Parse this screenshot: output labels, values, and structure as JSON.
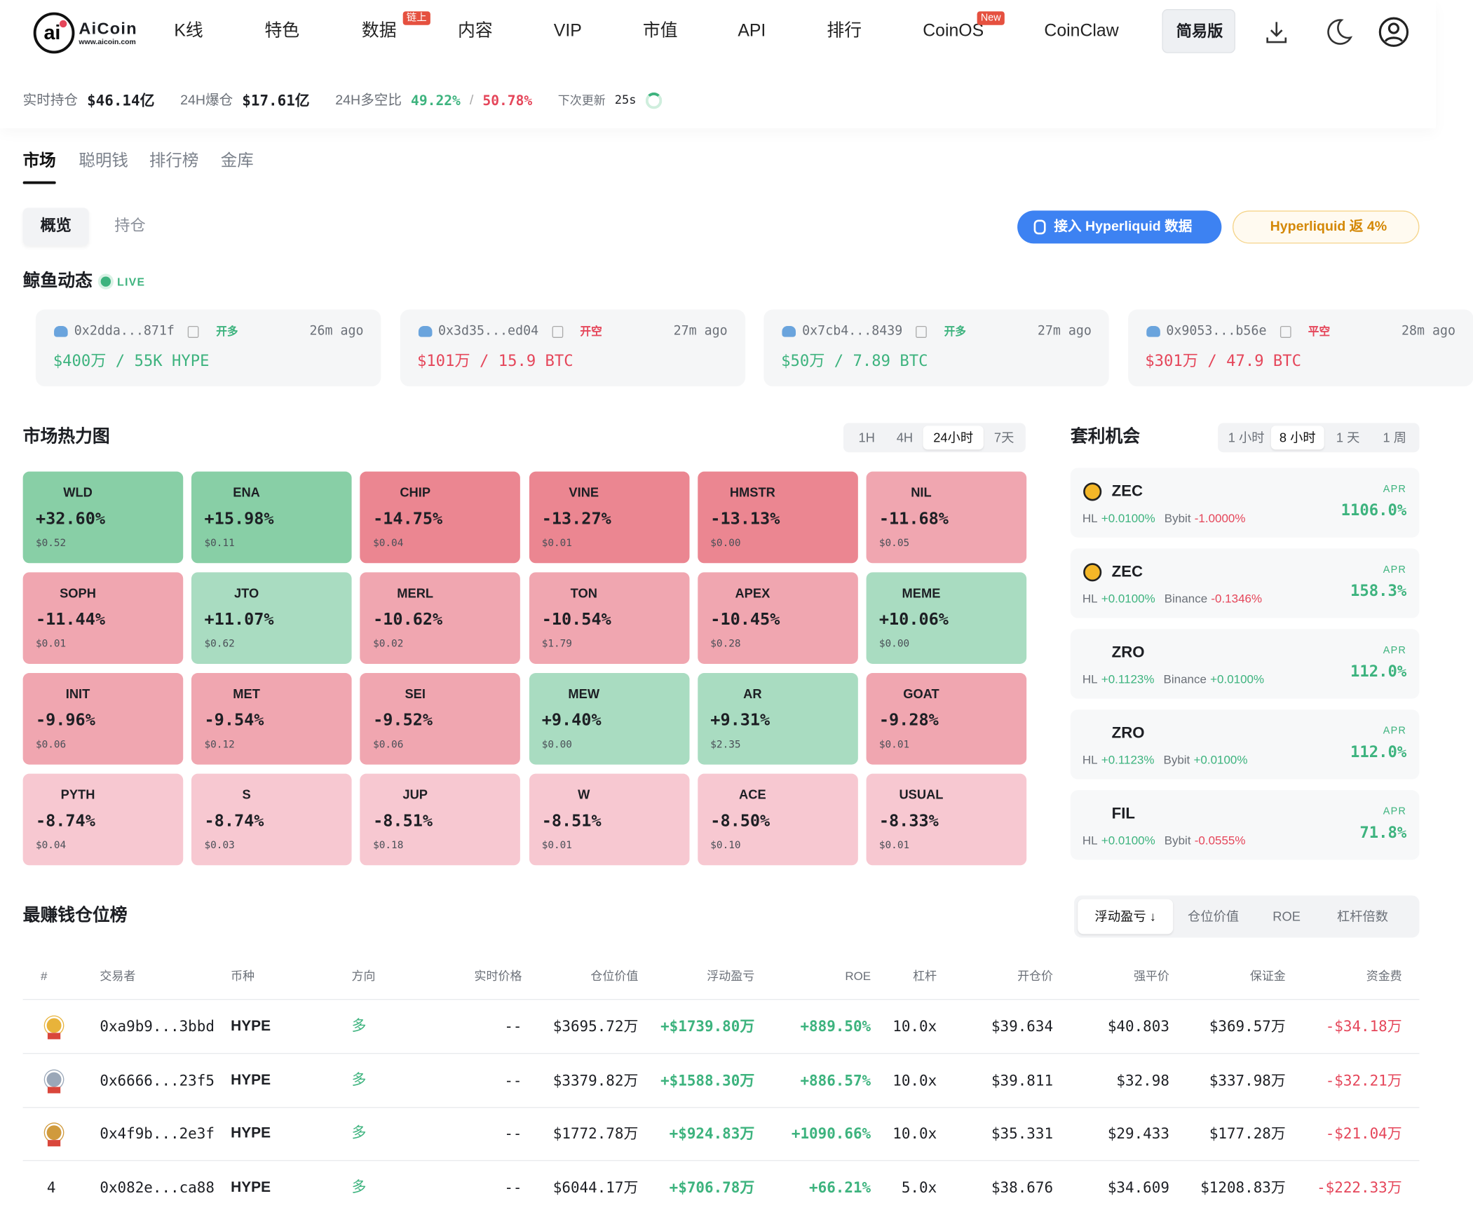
{
  "header": {
    "logo_name": "AiCoin",
    "logo_url": "www.aicoin.com",
    "nav": [
      {
        "label": "K线"
      },
      {
        "label": "特色"
      },
      {
        "label": "数据",
        "badge": "链上"
      },
      {
        "label": "内容"
      },
      {
        "label": "VIP"
      },
      {
        "label": "市值"
      },
      {
        "label": "API"
      },
      {
        "label": "排行"
      },
      {
        "label": "CoinOS",
        "badge": "New"
      },
      {
        "label": "CoinClaw"
      }
    ],
    "simple_button": "简易版"
  },
  "stats": {
    "items": [
      {
        "label": "实时持仓",
        "value": "$46.14亿"
      },
      {
        "label": "24H爆仓",
        "value": "$17.61亿"
      }
    ],
    "ratio_label": "24H多空比",
    "ratio_long": "49.22%",
    "ratio_sep": "/",
    "ratio_short": "50.78%",
    "next_label": "下次更新",
    "next_value": "25s"
  },
  "tabs": [
    "市场",
    "聪明钱",
    "排行榜",
    "金库"
  ],
  "subtabs": [
    "概览",
    "持仓"
  ],
  "promos": [
    "接入 Hyperliquid 数据",
    "Hyperliquid 返 4%"
  ],
  "whales": {
    "title": "鲸鱼动态",
    "live": "LIVE",
    "cards": [
      {
        "address": "0x2dda...871f",
        "side": "开多",
        "time": "26m ago",
        "amount": "$400万 / 55K HYPE",
        "color": "#3db37e"
      },
      {
        "address": "0x3d35...ed04",
        "side": "开空",
        "time": "27m ago",
        "amount": "$101万 / 15.9 BTC",
        "color": "#e5465a"
      },
      {
        "address": "0x7cb4...8439",
        "side": "开多",
        "time": "27m ago",
        "amount": "$50万 / 7.89 BTC",
        "color": "#3db37e"
      },
      {
        "address": "0x9053...b56e",
        "side": "平空",
        "time": "28m ago",
        "amount": "$301万 / 47.9 BTC",
        "color": "#e5465a"
      }
    ]
  },
  "heatmap": {
    "title": "市场热力图",
    "periods": [
      "1H",
      "4H",
      "24小时",
      "7天"
    ],
    "active": 2,
    "cells": [
      {
        "symbol": "WLD",
        "change": "+32.60%",
        "price": "$0.52"
      },
      {
        "symbol": "ENA",
        "change": "+15.98%",
        "price": "$0.11"
      },
      {
        "symbol": "CHIP",
        "change": "-14.75%",
        "price": "$0.04"
      },
      {
        "symbol": "VINE",
        "change": "-13.27%",
        "price": "$0.01"
      },
      {
        "symbol": "HMSTR",
        "change": "-13.13%",
        "price": "$0.00"
      },
      {
        "symbol": "NIL",
        "change": "-11.68%",
        "price": "$0.05"
      },
      {
        "symbol": "SOPH",
        "change": "-11.44%",
        "price": "$0.01"
      },
      {
        "symbol": "JTO",
        "change": "+11.07%",
        "price": "$0.62"
      },
      {
        "symbol": "MERL",
        "change": "-10.62%",
        "price": "$0.02"
      },
      {
        "symbol": "TON",
        "change": "-10.54%",
        "price": "$1.79"
      },
      {
        "symbol": "APEX",
        "change": "-10.45%",
        "price": "$0.28"
      },
      {
        "symbol": "MEME",
        "change": "+10.06%",
        "price": "$0.00"
      },
      {
        "symbol": "INIT",
        "change": "-9.96%",
        "price": "$0.06"
      },
      {
        "symbol": "MET",
        "change": "-9.54%",
        "price": "$0.12"
      },
      {
        "symbol": "SEI",
        "change": "-9.52%",
        "price": "$0.06"
      },
      {
        "symbol": "MEW",
        "change": "+9.40%",
        "price": "$0.00"
      },
      {
        "symbol": "AR",
        "change": "+9.31%",
        "price": "$2.35"
      },
      {
        "symbol": "GOAT",
        "change": "-9.28%",
        "price": "$0.01"
      },
      {
        "symbol": "PYTH",
        "change": "-8.74%",
        "price": "$0.04"
      },
      {
        "symbol": "S",
        "change": "-8.74%",
        "price": "$0.03"
      },
      {
        "symbol": "JUP",
        "change": "-8.51%",
        "price": "$0.18"
      },
      {
        "symbol": "W",
        "change": "-8.51%",
        "price": "$0.01"
      },
      {
        "symbol": "ACE",
        "change": "-8.50%",
        "price": "$0.10"
      },
      {
        "symbol": "USUAL",
        "change": "-8.33%",
        "price": "$0.01"
      }
    ]
  },
  "arbitrage": {
    "title": "套利机会",
    "periods": [
      "1 小时",
      "8 小时",
      "1 天",
      "1 周"
    ],
    "active": 1,
    "apr_label": "APR",
    "rows": [
      {
        "coin": "ZEC",
        "a_ex": "HL",
        "a_rate": "+0.0100%",
        "b_ex": "Bybit",
        "b_rate": "-1.0000%",
        "apr": "1106.0%"
      },
      {
        "coin": "ZEC",
        "a_ex": "HL",
        "a_rate": "+0.0100%",
        "b_ex": "Binance",
        "b_rate": "-0.1346%",
        "apr": "158.3%"
      },
      {
        "coin": "ZRO",
        "a_ex": "HL",
        "a_rate": "+0.1123%",
        "b_ex": "Binance",
        "b_rate": "+0.0100%",
        "apr": "112.0%"
      },
      {
        "coin": "ZRO",
        "a_ex": "HL",
        "a_rate": "+0.1123%",
        "b_ex": "Bybit",
        "b_rate": "+0.0100%",
        "apr": "112.0%"
      },
      {
        "coin": "FIL",
        "a_ex": "HL",
        "a_rate": "+0.0100%",
        "b_ex": "Bybit",
        "b_rate": "-0.0555%",
        "apr": "71.8%"
      }
    ]
  },
  "leaderboard": {
    "title": "最赚钱仓位榜",
    "sorts": [
      "浮动盈亏 ↓",
      "仓位价值",
      "ROE",
      "杠杆倍数"
    ],
    "columns": [
      "#",
      "交易者",
      "币种",
      "方向",
      "实时价格",
      "仓位价值",
      "浮动盈亏",
      "ROE",
      "杠杆",
      "开仓价",
      "强平价",
      "保证金",
      "资金费"
    ],
    "rows": [
      [
        null,
        "0xa9b9...3bbd",
        "HYPE",
        "多",
        "--",
        "$3695.72万",
        "+$1739.80万",
        "+889.50%",
        "10.0x",
        "$39.634",
        "$40.803",
        "$369.57万",
        "-$34.18万"
      ],
      [
        null,
        "0x6666...23f5",
        "HYPE",
        "多",
        "--",
        "$3379.82万",
        "+$1588.30万",
        "+886.57%",
        "10.0x",
        "$39.811",
        "$32.98",
        "$337.98万",
        "-$32.21万"
      ],
      [
        null,
        "0x4f9b...2e3f",
        "HYPE",
        "多",
        "--",
        "$1772.78万",
        "+$924.83万",
        "+1090.66%",
        "10.0x",
        "$35.331",
        "$29.433",
        "$177.28万",
        "-$21.04万"
      ],
      [
        "4",
        "0x082e...ca88",
        "HYPE",
        "多",
        "--",
        "$6044.17万",
        "+$706.78万",
        "+66.21%",
        "5.0x",
        "$38.676",
        "$34.609",
        "$1208.83万",
        "-$222.33万"
      ]
    ]
  }
}
